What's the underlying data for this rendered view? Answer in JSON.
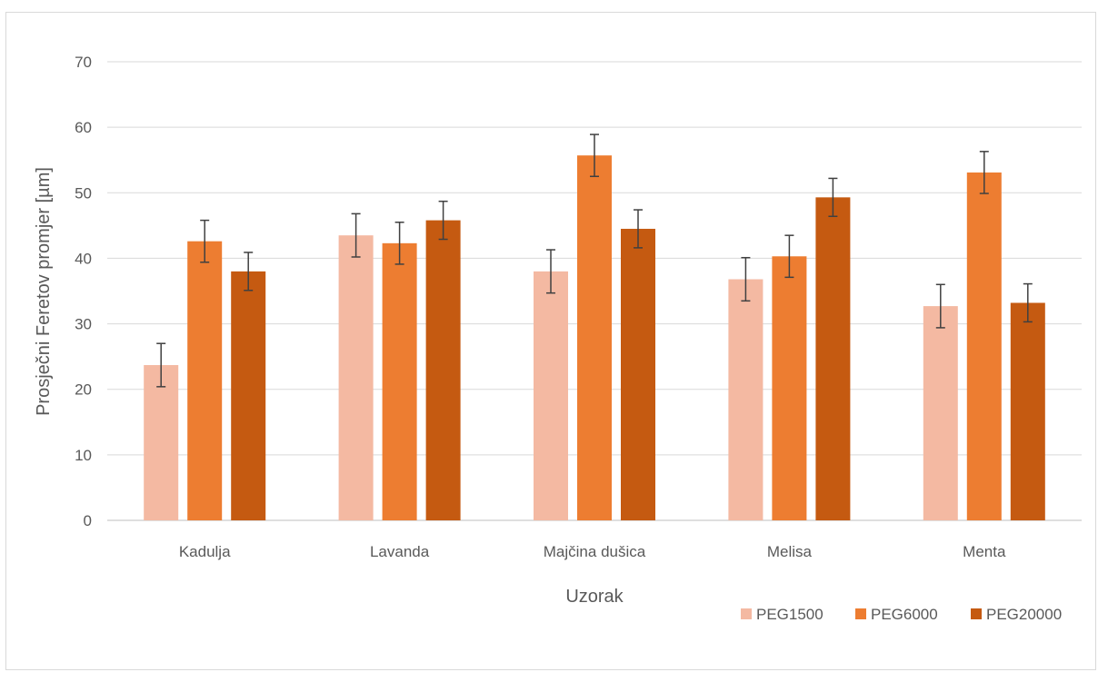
{
  "chart_data": {
    "type": "bar",
    "title": "",
    "xlabel": "Uzorak",
    "ylabel": "Prosječni Feretov promjer [µm]",
    "ylim": [
      0,
      70
    ],
    "yticks": [
      0,
      10,
      20,
      30,
      40,
      50,
      60,
      70
    ],
    "grid": true,
    "legend_position": "bottom-right",
    "categories": [
      "Kadulja",
      "Lavanda",
      "Majčina dušica",
      "Melisa",
      "Menta"
    ],
    "series": [
      {
        "name": "PEG1500",
        "color": "#f4b9a2",
        "values": [
          23.7,
          43.5,
          38.0,
          36.8,
          32.7
        ],
        "error": [
          3.3,
          3.3,
          3.3,
          3.3,
          3.3
        ]
      },
      {
        "name": "PEG6000",
        "color": "#ed7d31",
        "values": [
          42.6,
          42.3,
          55.7,
          40.3,
          53.1
        ],
        "error": [
          3.2,
          3.2,
          3.2,
          3.2,
          3.2
        ]
      },
      {
        "name": "PEG20000",
        "color": "#c55a11",
        "values": [
          38.0,
          45.8,
          44.5,
          49.3,
          33.2
        ],
        "error": [
          2.9,
          2.9,
          2.9,
          2.9,
          2.9
        ]
      }
    ],
    "gridline_color": "#d9d9d9",
    "axis_color": "#bfbfbf",
    "errorbar_color": "#404040"
  }
}
